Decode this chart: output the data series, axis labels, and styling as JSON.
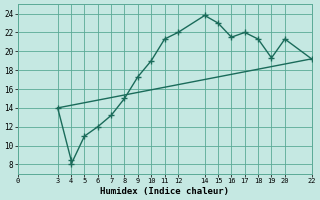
{
  "xlabel": "Humidex (Indice chaleur)",
  "ylabel": "",
  "bg_color": "#c5e8e2",
  "grid_color": "#5aaa96",
  "line_color": "#1a6b5a",
  "xlim": [
    0,
    22
  ],
  "ylim": [
    7,
    25
  ],
  "xticks": [
    0,
    3,
    4,
    5,
    6,
    7,
    8,
    9,
    10,
    11,
    12,
    14,
    15,
    16,
    17,
    18,
    19,
    20,
    22
  ],
  "yticks": [
    8,
    10,
    12,
    14,
    16,
    18,
    20,
    22,
    24
  ],
  "curve1_x": [
    3,
    4,
    4,
    5,
    6,
    7,
    8,
    9,
    10,
    11,
    12,
    14,
    15,
    16,
    17,
    18,
    19,
    20,
    22
  ],
  "curve1_y": [
    14,
    8.5,
    8.0,
    11.0,
    12.0,
    13.2,
    15.0,
    17.3,
    19.0,
    21.3,
    22.0,
    23.8,
    23.0,
    21.5,
    22.0,
    21.3,
    19.3,
    21.3,
    19.2
  ],
  "curve2_x": [
    3,
    22
  ],
  "curve2_y": [
    14,
    19.2
  ],
  "marker": "+",
  "marker_size": 4,
  "line_width": 1.0
}
